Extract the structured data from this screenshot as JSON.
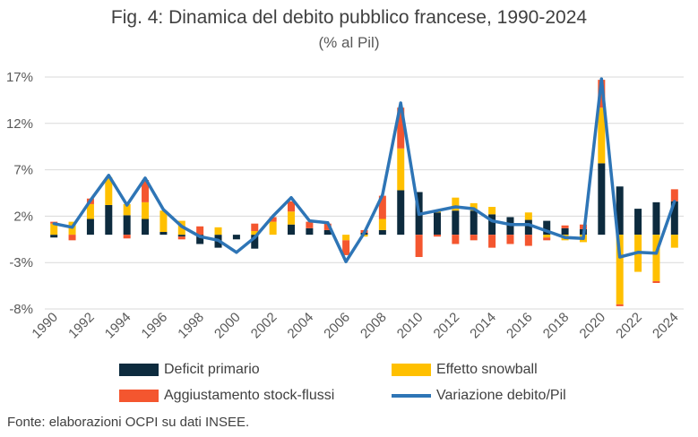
{
  "title": "Fig. 4: Dinamica del debito pubblico francese, 1990-2024",
  "subtitle": "(% al Pil)",
  "source": "Fonte: elaborazioni OCPI su dati INSEE.",
  "colors": {
    "deficit": "#0d2b3e",
    "snowball": "#ffc000",
    "stock": "#f4562f",
    "variation": "#2e75b6"
  },
  "chart_data": {
    "type": "bar",
    "stacked": true,
    "categories": [
      "1990",
      "1991",
      "1992",
      "1993",
      "1994",
      "1995",
      "1996",
      "1997",
      "1998",
      "1999",
      "2000",
      "2001",
      "2002",
      "2003",
      "2004",
      "2005",
      "2006",
      "2007",
      "2008",
      "2009",
      "2010",
      "2011",
      "2012",
      "2013",
      "2014",
      "2015",
      "2016",
      "2017",
      "2018",
      "2019",
      "2020",
      "2021",
      "2022",
      "2023",
      "2024"
    ],
    "x_tick_labels": [
      "1990",
      "1992",
      "1994",
      "1996",
      "1998",
      "2000",
      "2002",
      "2004",
      "2006",
      "2008",
      "2010",
      "2012",
      "2014",
      "2016",
      "2018",
      "2020",
      "2022",
      "2024"
    ],
    "y_ticks": [
      -8,
      -3,
      2,
      7,
      12,
      17
    ],
    "y_tick_labels": [
      "-8%",
      "-3%",
      "2%",
      "7%",
      "12%",
      "17%"
    ],
    "ylim": [
      -8,
      17
    ],
    "grid": true,
    "legend_position": "bottom",
    "series": [
      {
        "name": "Deficit primario",
        "type": "bar",
        "values": [
          -0.3,
          0.0,
          1.7,
          3.2,
          2.1,
          1.7,
          0.3,
          -0.2,
          -1.0,
          -1.4,
          -0.5,
          -1.5,
          0.0,
          1.1,
          0.7,
          0.5,
          0.0,
          0.2,
          0.5,
          4.8,
          4.6,
          2.4,
          2.6,
          2.6,
          2.2,
          1.9,
          1.6,
          1.5,
          0.7,
          0.6,
          7.7,
          5.2,
          2.8,
          3.5,
          3.6
        ]
      },
      {
        "name": "Effetto snowball",
        "type": "bar",
        "values": [
          1.2,
          1.4,
          1.6,
          3.0,
          1.2,
          1.8,
          2.3,
          1.5,
          0.0,
          0.8,
          0.0,
          0.4,
          1.4,
          1.4,
          0.0,
          0.0,
          -0.6,
          -0.2,
          1.2,
          4.5,
          0.0,
          0.2,
          1.4,
          0.8,
          0.8,
          0.0,
          0.8,
          -0.3,
          -0.6,
          -0.8,
          6.0,
          -7.5,
          -4.0,
          -5.0,
          -1.4
        ]
      },
      {
        "name": "Aggiustamento stock-flussi",
        "type": "bar",
        "values": [
          0.2,
          -0.6,
          0.6,
          0.0,
          -0.4,
          2.4,
          0.0,
          -0.3,
          0.9,
          0.0,
          0.0,
          0.8,
          0.5,
          1.1,
          0.7,
          0.7,
          -1.6,
          0.3,
          2.5,
          4.4,
          -2.4,
          -0.2,
          -1.0,
          -0.6,
          -1.4,
          -1.0,
          -1.2,
          -0.3,
          0.3,
          0.5,
          3.0,
          -0.2,
          0.0,
          -0.2,
          1.3
        ]
      },
      {
        "name": "Variazione debito/Pil",
        "type": "line",
        "values": [
          1.2,
          0.8,
          3.7,
          6.4,
          3.2,
          6.1,
          2.7,
          0.9,
          -0.2,
          -0.6,
          -1.9,
          -0.3,
          2.0,
          4.0,
          1.5,
          1.3,
          -2.9,
          0.2,
          4.3,
          14.2,
          2.2,
          2.6,
          3.0,
          2.8,
          1.5,
          1.1,
          1.1,
          0.4,
          -0.3,
          -0.4,
          16.8,
          -2.4,
          -1.9,
          -2.0,
          3.6
        ]
      }
    ]
  }
}
